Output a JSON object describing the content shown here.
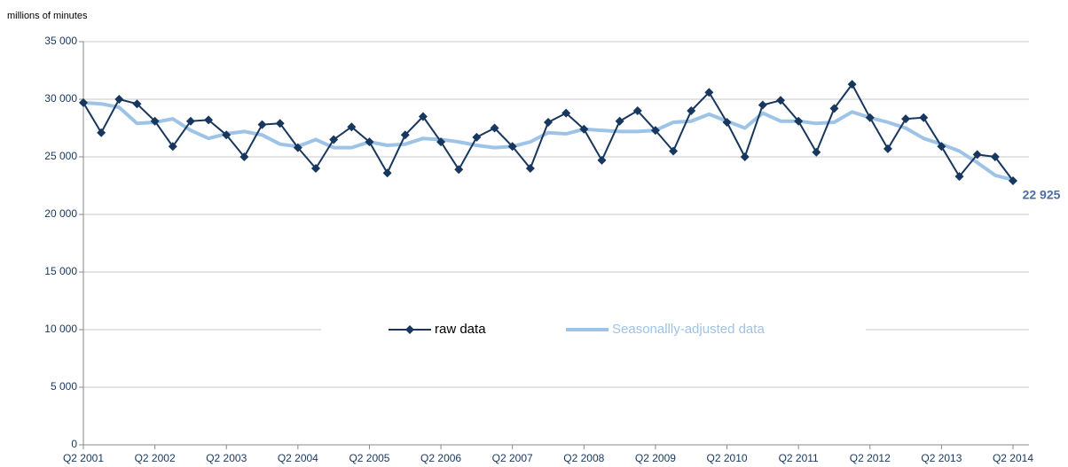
{
  "chart_data": {
    "type": "line",
    "y_axis_label": "millions of minutes",
    "categories": [
      "Q2 2001",
      null,
      null,
      null,
      "Q2 2002",
      null,
      null,
      null,
      "Q2 2003",
      null,
      null,
      null,
      "Q2 2004",
      null,
      null,
      null,
      "Q2 2005",
      null,
      null,
      null,
      "Q2 2006",
      null,
      null,
      null,
      "Q2 2007",
      null,
      null,
      null,
      "Q2 2008",
      null,
      null,
      null,
      "Q2 2009",
      null,
      null,
      null,
      "Q2 2010",
      null,
      null,
      null,
      "Q2 2011",
      null,
      null,
      null,
      "Q2 2012",
      null,
      null,
      null,
      "Q2 2013",
      null,
      null,
      null,
      "Q2 2014"
    ],
    "series": [
      {
        "name": "raw data",
        "color": "#17375e",
        "marker": "diamond",
        "values": [
          29700,
          27100,
          30000,
          29600,
          28100,
          25900,
          28100,
          28200,
          26900,
          25000,
          27800,
          27900,
          25800,
          24000,
          26500,
          27600,
          26300,
          23600,
          26900,
          28500,
          26300,
          23900,
          26700,
          27500,
          25900,
          24000,
          28000,
          28800,
          27400,
          24700,
          28100,
          29000,
          27300,
          25500,
          29000,
          30600,
          28000,
          25000,
          29500,
          29900,
          28100,
          25400,
          29200,
          31300,
          28400,
          25700,
          28300,
          28400,
          25900,
          23300,
          25200,
          25000,
          22925
        ],
        "value_labels": [
          null,
          null,
          null,
          null,
          null,
          null,
          null,
          null,
          null,
          null,
          null,
          null,
          null,
          null,
          null,
          null,
          null,
          null,
          null,
          null,
          null,
          null,
          null,
          null,
          null,
          null,
          null,
          null,
          null,
          null,
          null,
          null,
          null,
          null,
          null,
          null,
          null,
          null,
          null,
          null,
          null,
          null,
          null,
          null,
          null,
          null,
          null,
          null,
          null,
          null,
          null,
          null,
          "22 925"
        ]
      },
      {
        "name": "Seasonallly-adjusted data",
        "color": "#9dc3e6",
        "marker": "none",
        "values": [
          29700,
          29600,
          29300,
          27900,
          28000,
          28300,
          27300,
          26600,
          27000,
          27200,
          26900,
          26100,
          25900,
          26500,
          25800,
          25800,
          26300,
          26000,
          26100,
          26600,
          26500,
          26300,
          26000,
          25800,
          25900,
          26300,
          27100,
          27000,
          27400,
          27300,
          27200,
          27200,
          27300,
          28000,
          28100,
          28700,
          28100,
          27500,
          28800,
          28100,
          28100,
          27900,
          28000,
          28900,
          28400,
          28000,
          27500,
          26600,
          26100,
          25500,
          24500,
          23400,
          23000
        ]
      }
    ],
    "ylim": [
      0,
      35000
    ],
    "yticks": [
      0,
      {
        "value": 5000,
        "label": "5 000"
      },
      {
        "value": 10000,
        "label": "10 000"
      },
      {
        "value": 15000,
        "label": "15 000"
      },
      {
        "value": 20000,
        "label": "20 000"
      },
      {
        "value": 25000,
        "label": "25 000"
      },
      {
        "value": 30000,
        "label": "30 000"
      },
      {
        "value": 35000,
        "label": "35 000"
      }
    ],
    "grid": true,
    "legend": "center"
  }
}
